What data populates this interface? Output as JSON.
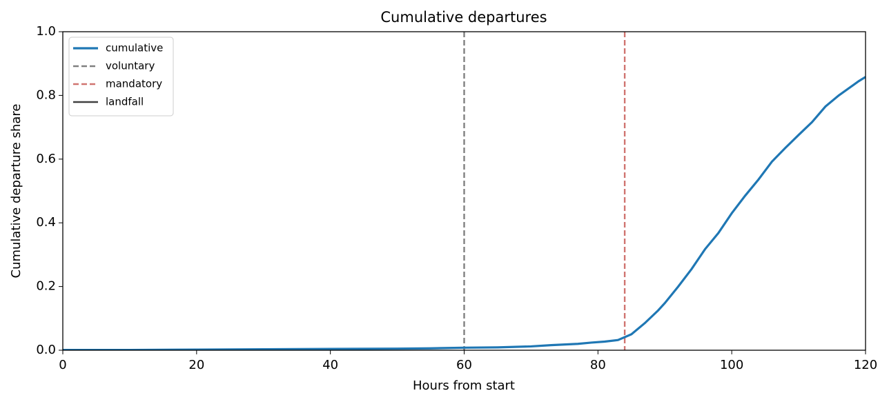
{
  "chart_data": {
    "type": "line",
    "title": "Cumulative departures",
    "xlabel": "Hours from start",
    "ylabel": "Cumulative departure share",
    "x": [
      0,
      10,
      20,
      30,
      40,
      50,
      55,
      60,
      65,
      70,
      73,
      77,
      79,
      81,
      83,
      85,
      87,
      89,
      90,
      92,
      94,
      96,
      98,
      100,
      102,
      104,
      106,
      108,
      110,
      112,
      114,
      116,
      118,
      119,
      120
    ],
    "series": [
      {
        "name": "cumulative",
        "color": "#1f77b4",
        "values": [
          0.001,
          0.001,
          0.002,
          0.003,
          0.004,
          0.005,
          0.006,
          0.008,
          0.009,
          0.012,
          0.016,
          0.02,
          0.024,
          0.027,
          0.032,
          0.05,
          0.085,
          0.125,
          0.148,
          0.2,
          0.255,
          0.317,
          0.368,
          0.43,
          0.485,
          0.536,
          0.592,
          0.635,
          0.676,
          0.716,
          0.765,
          0.8,
          0.83,
          0.845,
          0.858
        ]
      }
    ],
    "vlines": [
      {
        "name": "voluntary",
        "color": "#808080",
        "dashed": true,
        "x": 60
      },
      {
        "name": "mandatory",
        "color": "#d07470",
        "dashed": true,
        "x": 84
      },
      {
        "name": "landfall",
        "color": "#404040",
        "dashed": false
      }
    ],
    "xlim": [
      0,
      120
    ],
    "xticks": [
      0,
      20,
      40,
      60,
      80,
      100,
      120
    ],
    "ylim": [
      0,
      1
    ],
    "yticks": [
      {
        "value": 0,
        "label": "0.0"
      },
      {
        "value": 0.2,
        "label": "0.2"
      },
      {
        "value": 0.4,
        "label": "0.4"
      },
      {
        "value": 0.6,
        "label": "0.6"
      },
      {
        "value": 0.8,
        "label": "0.8"
      },
      {
        "value": 1,
        "label": "1.0"
      }
    ],
    "legend": "upper left"
  }
}
